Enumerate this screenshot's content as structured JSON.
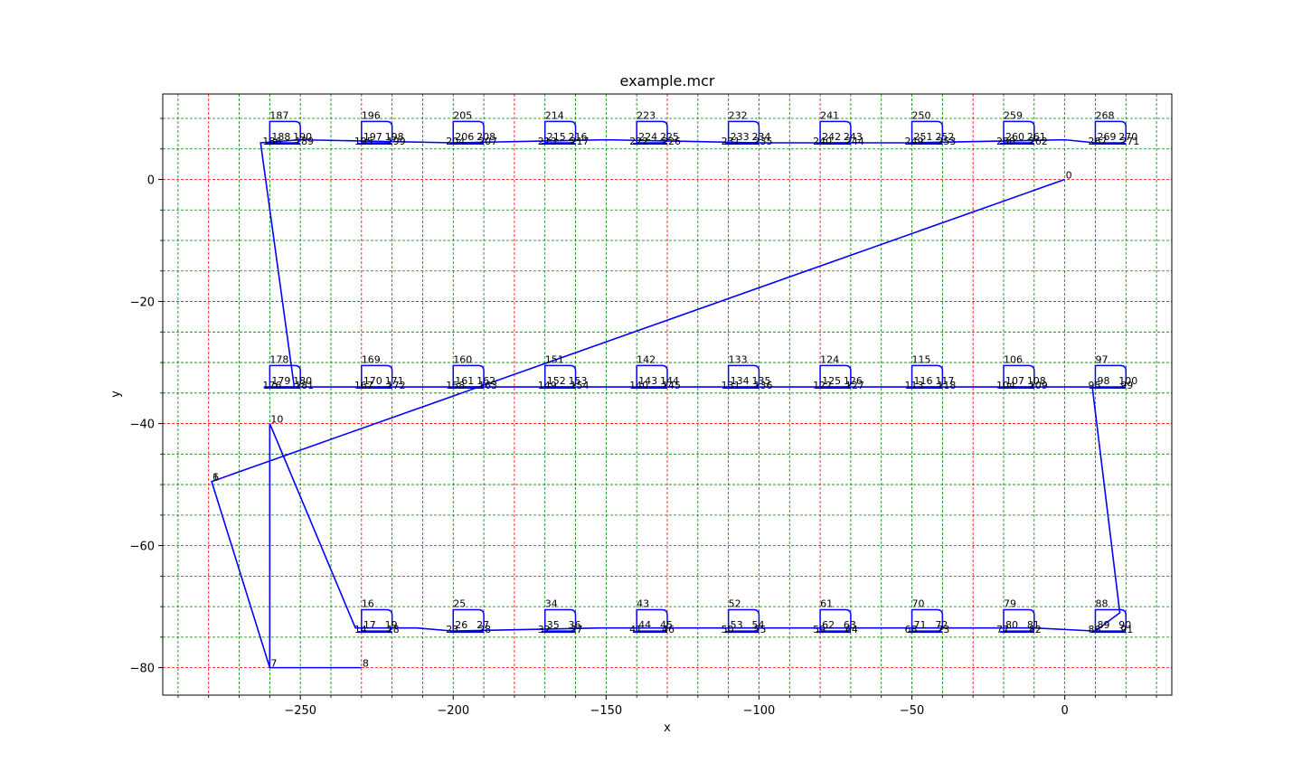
{
  "chart_data": {
    "type": "line",
    "title": "example.mcr",
    "xlabel": "x",
    "ylabel": "y",
    "xlim": [
      -295,
      35
    ],
    "ylim": [
      -84.5,
      14
    ],
    "x_ticks": [
      -250,
      -200,
      -150,
      -100,
      -50,
      0
    ],
    "y_ticks": [
      0,
      -20,
      -40,
      -60,
      -80
    ],
    "x_tick_labels": [
      "−250",
      "−200",
      "−150",
      "−100",
      "−50",
      "0"
    ],
    "y_tick_labels": [
      "0",
      "−20",
      "−40",
      "−60",
      "−80"
    ],
    "grid": true,
    "major_grid_color": "#ff0000",
    "minor_grid_color": "#008000",
    "line_color": "#0000ff",
    "major_x_lines": [
      -280,
      -230,
      -180,
      -130,
      -80,
      -30
    ],
    "minor_x_lines": [
      -290,
      -270,
      -260,
      -250,
      -240,
      -220,
      -210,
      -200,
      -190,
      -170,
      -160,
      -150,
      -140,
      -120,
      -110,
      -100,
      -90,
      -70,
      -60,
      -50,
      -40,
      -20,
      -10,
      0,
      10,
      20,
      30
    ],
    "major_y_lines": [
      0,
      -20,
      -40,
      -60,
      -80
    ],
    "minor_y_lines": [
      10,
      5,
      -5,
      -10,
      -15,
      -25,
      -30,
      -35,
      -45,
      -50,
      -55,
      -65,
      -70,
      -75
    ],
    "path_points": [
      [
        0,
        0
      ],
      [
        -279,
        -49.5
      ],
      [
        -260,
        -80
      ],
      [
        -230,
        -80
      ],
      [
        -260,
        -80
      ],
      [
        -260,
        -40
      ],
      [
        -232,
        -73.5
      ],
      [
        -212,
        -73.5
      ],
      [
        -200,
        -74
      ],
      [
        -152,
        -73.5
      ],
      [
        -100,
        -73.5
      ],
      [
        -52,
        -73.5
      ],
      [
        -10,
        -73.5
      ],
      [
        10,
        -74
      ],
      [
        18,
        -71
      ],
      [
        9,
        -34
      ],
      [
        -50,
        -34
      ],
      [
        -100,
        -34
      ],
      [
        -150,
        -34
      ],
      [
        -200,
        -34
      ],
      [
        -250,
        -34
      ],
      [
        -262,
        -34
      ],
      [
        -252,
        -34
      ],
      [
        -263,
        6
      ],
      [
        -250,
        6.5
      ],
      [
        -200,
        6
      ],
      [
        -150,
        6.5
      ],
      [
        -100,
        6
      ],
      [
        -50,
        6
      ],
      [
        0,
        6.5
      ],
      [
        10,
        6
      ]
    ],
    "waypoint_labels": [
      {
        "x": 0,
        "y": 0,
        "label": "0"
      },
      {
        "x": -279,
        "y": -49.5,
        "label": "1"
      },
      {
        "x": -279,
        "y": -49.5,
        "label": "6"
      },
      {
        "x": -260,
        "y": -80,
        "label": "7"
      },
      {
        "x": -230,
        "y": -80,
        "label": "8"
      },
      {
        "x": -260,
        "y": -40,
        "label": "10"
      }
    ],
    "feature_rows": [
      {
        "y_top": 9.5,
        "y_bottom": 6,
        "features": [
          {
            "x": -260,
            "top": "187",
            "side": "190",
            "low": "188",
            "left": "186",
            "low_right": "189"
          },
          {
            "x": -230,
            "top": "196",
            "side": "198",
            "low": "197",
            "left": "195",
            "low_right": "199"
          },
          {
            "x": -200,
            "top": "205",
            "side": "208",
            "low": "206",
            "left": "204",
            "low_right": "207"
          },
          {
            "x": -170,
            "top": "214",
            "side": "216",
            "low": "215",
            "left": "213",
            "low_right": "217"
          },
          {
            "x": -140,
            "top": "223",
            "side": "225",
            "low": "224",
            "left": "222",
            "low_right": "226"
          },
          {
            "x": -110,
            "top": "232",
            "side": "234",
            "low": "233",
            "left": "231",
            "low_right": "235"
          },
          {
            "x": -80,
            "top": "241",
            "side": "243",
            "low": "242",
            "left": "240",
            "low_right": "244"
          },
          {
            "x": -50,
            "top": "250",
            "side": "252",
            "low": "251",
            "left": "249",
            "low_right": "253"
          },
          {
            "x": -20,
            "top": "259",
            "side": "261",
            "low": "260",
            "left": "258",
            "low_right": "262"
          },
          {
            "x": 10,
            "top": "268",
            "side": "270",
            "low": "269",
            "left": "267",
            "low_right": "271"
          }
        ]
      },
      {
        "y_top": -30.5,
        "y_bottom": -34,
        "features": [
          {
            "x": -260,
            "top": "178",
            "side": "180",
            "low": "179",
            "left": "176",
            "low_right": "181"
          },
          {
            "x": -230,
            "top": "169",
            "side": "171",
            "low": "170",
            "left": "167",
            "low_right": "172"
          },
          {
            "x": -200,
            "top": "160",
            "side": "162",
            "low": "161",
            "left": "158",
            "low_right": "163"
          },
          {
            "x": -170,
            "top": "151",
            "side": "153",
            "low": "152",
            "left": "149",
            "low_right": "154"
          },
          {
            "x": -140,
            "top": "142",
            "side": "144",
            "low": "143",
            "left": "140",
            "low_right": "145"
          },
          {
            "x": -110,
            "top": "133",
            "side": "135",
            "low": "134",
            "left": "131",
            "low_right": "136"
          },
          {
            "x": -80,
            "top": "124",
            "side": "126",
            "low": "125",
            "left": "122",
            "low_right": "127"
          },
          {
            "x": -50,
            "top": "115",
            "side": "117",
            "low": "116",
            "left": "113",
            "low_right": "118"
          },
          {
            "x": -20,
            "top": "106",
            "side": "108",
            "low": "107",
            "left": "104",
            "low_right": "109"
          },
          {
            "x": 10,
            "top": "97",
            "side": "100",
            "low": "98",
            "left": "95",
            "low_right": "99"
          }
        ]
      },
      {
        "y_top": -70.5,
        "y_bottom": -74,
        "features": [
          {
            "x": -230,
            "top": "16",
            "side": "19",
            "low": "17",
            "left": "14",
            "low_right": "18"
          },
          {
            "x": -200,
            "top": "25",
            "side": "27",
            "low": "26",
            "left": "23",
            "low_right": "28"
          },
          {
            "x": -170,
            "top": "34",
            "side": "36",
            "low": "35",
            "left": "32",
            "low_right": "37"
          },
          {
            "x": -140,
            "top": "43",
            "side": "45",
            "low": "44",
            "left": "41",
            "low_right": "46"
          },
          {
            "x": -110,
            "top": "52",
            "side": "54",
            "low": "53",
            "left": "50",
            "low_right": "55"
          },
          {
            "x": -80,
            "top": "61",
            "side": "63",
            "low": "62",
            "left": "59",
            "low_right": "64"
          },
          {
            "x": -50,
            "top": "70",
            "side": "72",
            "low": "71",
            "left": "68",
            "low_right": "73"
          },
          {
            "x": -20,
            "top": "79",
            "side": "81",
            "low": "80",
            "left": "77",
            "low_right": "82"
          },
          {
            "x": 10,
            "top": "88",
            "side": "90",
            "low": "89",
            "left": "86",
            "low_right": "91"
          }
        ]
      }
    ]
  }
}
